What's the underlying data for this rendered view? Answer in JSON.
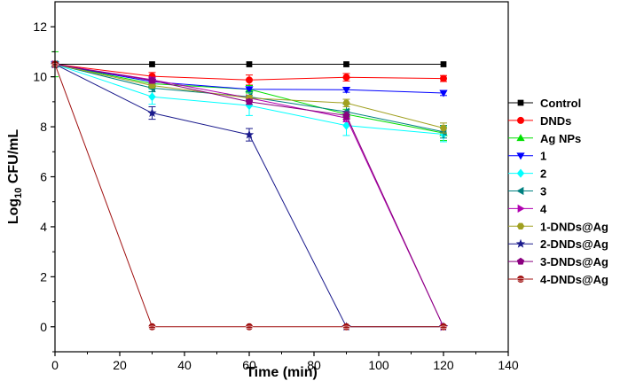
{
  "chart_data": {
    "type": "line",
    "xlabel": "Time (min)",
    "ylabel_main": "Log",
    "ylabel_sub": "10",
    "ylabel_rest": " CFU/mL",
    "xlim": [
      0,
      140
    ],
    "ylim": [
      -1,
      13
    ],
    "xticks": [
      0,
      20,
      40,
      60,
      80,
      100,
      120,
      140
    ],
    "yticks": [
      0,
      2,
      4,
      6,
      8,
      10,
      12
    ],
    "x": [
      0,
      30,
      60,
      90,
      120
    ],
    "legend_position": "right",
    "series": [
      {
        "name": "Control",
        "values": [
          10.5,
          10.5,
          10.5,
          10.5,
          10.5
        ],
        "errors": [
          0,
          0,
          0,
          0,
          0
        ],
        "color": "#000000",
        "marker": "square"
      },
      {
        "name": "DNDs",
        "values": [
          10.5,
          10.02,
          9.87,
          9.98,
          9.93
        ],
        "errors": [
          0.05,
          0.15,
          0.2,
          0.15,
          0.12
        ],
        "color": "#ff0000",
        "marker": "circle"
      },
      {
        "name": "Ag NPs",
        "values": [
          10.5,
          9.72,
          9.5,
          8.5,
          7.75
        ],
        "errors": [
          0.5,
          0.15,
          0.15,
          0.2,
          0.3
        ],
        "color": "#00e000",
        "marker": "triangle-up"
      },
      {
        "name": "1",
        "values": [
          10.5,
          9.8,
          9.5,
          9.48,
          9.35
        ],
        "errors": [
          0.05,
          0.1,
          0.1,
          0.1,
          0.1
        ],
        "color": "#0000ff",
        "marker": "triangle-down"
      },
      {
        "name": "2",
        "values": [
          10.5,
          9.2,
          8.85,
          8.05,
          7.7
        ],
        "errors": [
          0.1,
          0.3,
          0.4,
          0.4,
          0.3
        ],
        "color": "#00ffff",
        "marker": "diamond"
      },
      {
        "name": "3",
        "values": [
          10.5,
          9.55,
          9.2,
          8.6,
          7.8
        ],
        "errors": [
          0.1,
          0.15,
          0.2,
          0.3,
          0.25
        ],
        "color": "#008080",
        "marker": "triangle-left"
      },
      {
        "name": "4",
        "values": [
          10.5,
          9.88,
          9.15,
          8.35,
          0.0
        ],
        "errors": [
          0.05,
          0.1,
          0.1,
          0.15,
          0
        ],
        "color": "#b000b0",
        "marker": "triangle-right"
      },
      {
        "name": "1-DNDs@Ag",
        "values": [
          10.5,
          9.65,
          9.15,
          8.95,
          7.95
        ],
        "errors": [
          0.05,
          0.1,
          0.1,
          0.15,
          0.2
        ],
        "color": "#a0a020",
        "marker": "hexagon"
      },
      {
        "name": "2-DNDs@Ag",
        "values": [
          10.5,
          8.55,
          7.68,
          0.0,
          0.0
        ],
        "errors": [
          0.05,
          0.25,
          0.25,
          0,
          0
        ],
        "color": "#1a1a8c",
        "marker": "star"
      },
      {
        "name": "3-DNDs@Ag",
        "values": [
          10.5,
          9.85,
          9.0,
          8.45,
          0.0
        ],
        "errors": [
          0.05,
          0.1,
          0.1,
          0.15,
          0
        ],
        "color": "#8b0080",
        "marker": "pentagon"
      },
      {
        "name": "4-DNDs@Ag",
        "values": [
          10.5,
          0.0,
          0.0,
          0.0,
          0.0
        ],
        "errors": [
          0.05,
          0,
          0,
          0,
          0
        ],
        "color": "#a01010",
        "marker": "sphere"
      }
    ]
  }
}
